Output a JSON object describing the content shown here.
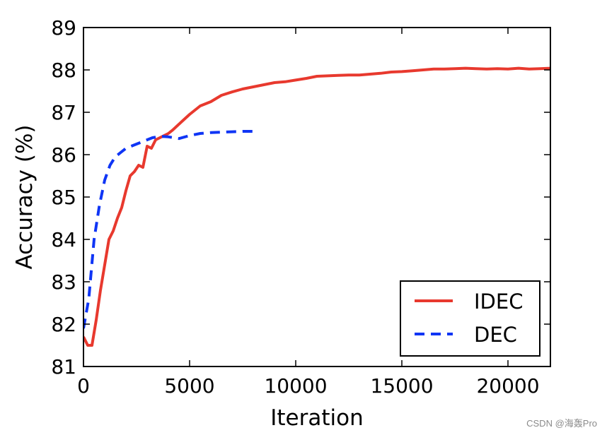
{
  "chart_data": {
    "type": "line",
    "title": "",
    "xlabel": "Iteration",
    "ylabel": "Accuracy (%)",
    "xlim": [
      0,
      22000
    ],
    "ylim": [
      81,
      89
    ],
    "xticks": [
      0,
      5000,
      10000,
      15000,
      20000
    ],
    "xtick_labels": [
      "0",
      "5000",
      "10000",
      "15000",
      "20000"
    ],
    "yticks": [
      81,
      82,
      83,
      84,
      85,
      86,
      87,
      88,
      89
    ],
    "ytick_labels": [
      "81",
      "82",
      "83",
      "84",
      "85",
      "86",
      "87",
      "88",
      "89"
    ],
    "grid": false,
    "legend_position": "lower-right",
    "series": [
      {
        "name": "IDEC",
        "color": "#e8392e",
        "style": "solid",
        "x": [
          0,
          200,
          400,
          600,
          800,
          1000,
          1200,
          1400,
          1600,
          1800,
          2000,
          2200,
          2400,
          2600,
          2800,
          3000,
          3200,
          3400,
          3600,
          3800,
          4000,
          4200,
          4500,
          5000,
          5500,
          6000,
          6500,
          7000,
          7500,
          8000,
          8500,
          9000,
          9500,
          10000,
          10500,
          11000,
          11500,
          12000,
          12500,
          13000,
          13500,
          14000,
          14500,
          15000,
          15500,
          16000,
          16500,
          17000,
          17500,
          18000,
          18500,
          19000,
          19500,
          20000,
          20500,
          21000,
          21500,
          22000
        ],
        "values": [
          81.7,
          81.5,
          81.5,
          82.1,
          82.8,
          83.4,
          84.0,
          84.2,
          84.5,
          84.75,
          85.15,
          85.5,
          85.6,
          85.75,
          85.7,
          86.2,
          86.15,
          86.35,
          86.4,
          86.45,
          86.5,
          86.58,
          86.72,
          86.95,
          87.15,
          87.25,
          87.4,
          87.48,
          87.55,
          87.6,
          87.65,
          87.7,
          87.72,
          87.76,
          87.8,
          87.85,
          87.86,
          87.87,
          87.88,
          87.88,
          87.9,
          87.92,
          87.95,
          87.96,
          87.98,
          88.0,
          88.02,
          88.02,
          88.03,
          88.04,
          88.03,
          88.02,
          88.03,
          88.02,
          88.04,
          88.02,
          88.03,
          88.04
        ]
      },
      {
        "name": "DEC",
        "color": "#0f35f5",
        "style": "dashed",
        "x": [
          0,
          250,
          500,
          750,
          1000,
          1250,
          1500,
          1750,
          2000,
          2250,
          2500,
          2750,
          3000,
          3250,
          3500,
          3750,
          4000,
          4500,
          5000,
          5500,
          6000,
          6500,
          7000,
          7500,
          8000
        ],
        "values": [
          81.9,
          82.6,
          84.0,
          84.8,
          85.4,
          85.75,
          85.95,
          86.05,
          86.15,
          86.2,
          86.25,
          86.3,
          86.35,
          86.4,
          86.42,
          86.43,
          86.42,
          86.38,
          86.45,
          86.5,
          86.52,
          86.53,
          86.54,
          86.55,
          86.55
        ]
      }
    ]
  },
  "watermark": "CSDN @海轰Pro"
}
